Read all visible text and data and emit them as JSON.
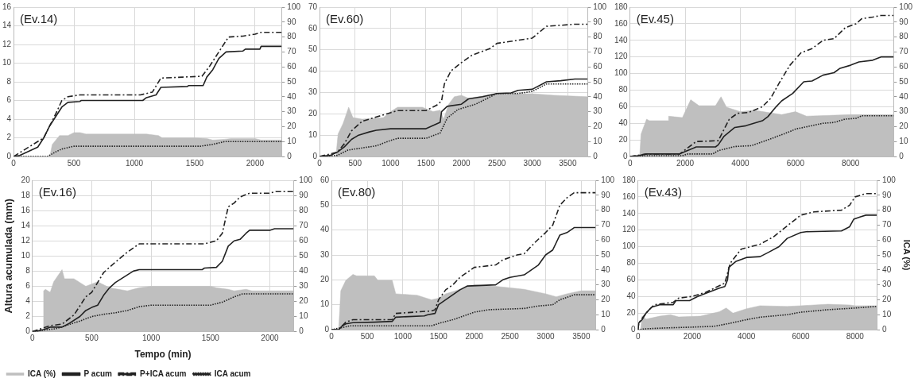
{
  "chart_data": [
    {
      "type": "line",
      "title": "(Ev.14)",
      "xlim": [
        0,
        2220
      ],
      "xticks": [
        0,
        500,
        1000,
        1500,
        2000
      ],
      "ylim": [
        0,
        16
      ],
      "yticks": [
        0,
        2,
        4,
        6,
        8,
        10,
        12,
        14,
        16
      ],
      "y2lim": [
        0,
        100
      ],
      "y2ticks": [
        0,
        10,
        20,
        30,
        40,
        50,
        60,
        70,
        80,
        90,
        100
      ],
      "grid": true,
      "legend": false,
      "series": [
        {
          "type": "area",
          "axis": "y2",
          "color": "#bfbfbf",
          "x": [
            0,
            300,
            320,
            380,
            450,
            500,
            550,
            600,
            1000,
            1100,
            1200,
            1230,
            1500,
            1600,
            1650,
            1750,
            1800,
            2000,
            2050,
            2220
          ],
          "values": [
            0,
            0,
            8,
            14,
            14,
            16,
            16,
            15,
            15,
            15,
            14,
            12.5,
            12.5,
            12,
            11,
            11.5,
            12,
            12,
            11,
            11
          ]
        },
        {
          "type": "line",
          "line_style": "solid",
          "color": "#222222",
          "x": [
            0,
            50,
            100,
            200,
            250,
            300,
            350,
            400,
            450,
            550,
            560,
            1070,
            1100,
            1180,
            1220,
            1440,
            1450,
            1570,
            1600,
            1650,
            1700,
            1760,
            1900,
            1920,
            2040,
            2050,
            2220
          ],
          "values": [
            0,
            0.1,
            0.4,
            1.0,
            2,
            3.3,
            4.3,
            5.3,
            5.8,
            5.9,
            6.0,
            6.0,
            6.3,
            6.6,
            7.4,
            7.5,
            7.6,
            7.6,
            8.5,
            9.3,
            10.5,
            11.2,
            11.3,
            11.5,
            11.5,
            11.8,
            11.8
          ]
        },
        {
          "type": "line",
          "line_style": "dashed",
          "color": "#222222",
          "x": [
            0,
            250,
            300,
            350,
            400,
            450,
            550,
            1050,
            1150,
            1220,
            1400,
            1560,
            1620,
            1700,
            1780,
            1900,
            2000,
            2050,
            2220
          ],
          "values": [
            0,
            2,
            3.3,
            4.6,
            6.0,
            6.4,
            6.6,
            6.6,
            6.9,
            8.4,
            8.5,
            8.6,
            9.6,
            11.2,
            12.8,
            12.9,
            13.1,
            13.3,
            13.3
          ]
        },
        {
          "type": "line",
          "line_style": "dotted",
          "color": "#222222",
          "x": [
            0,
            280,
            350,
            400,
            500,
            1550,
            1650,
            1750,
            2220
          ],
          "values": [
            0,
            0,
            0.5,
            0.8,
            1.1,
            1.1,
            1.3,
            1.6,
            1.6
          ]
        }
      ]
    },
    {
      "type": "line",
      "title": "(Ev.60)",
      "xlim": [
        0,
        3780
      ],
      "xticks": [
        0,
        500,
        1000,
        1500,
        2000,
        2500,
        3000,
        3500
      ],
      "ylim": [
        0,
        70
      ],
      "yticks": [
        0,
        10,
        20,
        30,
        40,
        50,
        60,
        70
      ],
      "y2lim": [
        0,
        100
      ],
      "y2ticks": [
        0,
        10,
        20,
        30,
        40,
        50,
        60,
        70,
        80,
        90,
        100
      ],
      "grid": true,
      "legend": false,
      "series": [
        {
          "type": "area",
          "axis": "y2",
          "color": "#bfbfbf",
          "x": [
            0,
            230,
            260,
            330,
            410,
            470,
            600,
            900,
            1000,
            1100,
            1450,
            1600,
            1700,
            1750,
            1820,
            1900,
            2000,
            2100,
            2500,
            2800,
            3000,
            3300,
            3780
          ],
          "values": [
            0,
            0,
            15,
            22,
            33,
            26,
            25,
            26,
            30,
            33,
            33,
            30,
            31,
            25,
            35,
            40,
            41,
            39,
            42,
            42,
            42,
            41,
            40
          ]
        },
        {
          "type": "line",
          "line_style": "solid",
          "color": "#222222",
          "x": [
            0,
            150,
            250,
            350,
            450,
            550,
            700,
            800,
            1000,
            1500,
            1600,
            1700,
            1720,
            1800,
            2000,
            2100,
            2300,
            2500,
            2700,
            2800,
            3000,
            3200,
            3400,
            3600,
            3780
          ],
          "values": [
            0,
            0.5,
            2,
            4.5,
            8,
            10,
            11.5,
            12.3,
            13,
            13,
            14.5,
            16,
            21,
            23.5,
            24.5,
            27,
            28,
            29.5,
            29.8,
            31,
            31.5,
            35,
            35.5,
            36.3,
            36.3
          ]
        },
        {
          "type": "line",
          "line_style": "dashed",
          "color": "#222222",
          "x": [
            0,
            250,
            350,
            450,
            600,
            800,
            1000,
            1100,
            1500,
            1650,
            1720,
            1760,
            1850,
            2000,
            2150,
            2400,
            2500,
            2700,
            3000,
            3200,
            3400,
            3600,
            3780
          ],
          "values": [
            0,
            2,
            6,
            12,
            16.5,
            18.5,
            20.5,
            21.5,
            21.5,
            24,
            26,
            34,
            40,
            44,
            47.5,
            50.5,
            53,
            54,
            55.5,
            61,
            61.5,
            62,
            62
          ]
        },
        {
          "type": "line",
          "line_style": "dotted",
          "color": "#222222",
          "x": [
            0,
            250,
            400,
            600,
            800,
            1000,
            1100,
            1500,
            1700,
            1800,
            1950,
            2200,
            2500,
            2800,
            3000,
            3200,
            3780
          ],
          "values": [
            0,
            0.5,
            3,
            4,
            5,
            7.5,
            8.5,
            8.5,
            11,
            18,
            22,
            24.5,
            29.5,
            29.5,
            30.5,
            34,
            34
          ]
        }
      ]
    },
    {
      "type": "line",
      "title": "(Ev.45)",
      "xlim": [
        0,
        9560
      ],
      "xticks": [
        0,
        2000,
        4000,
        6000,
        8000
      ],
      "ylim": [
        0,
        180
      ],
      "yticks": [
        0,
        20,
        40,
        60,
        80,
        100,
        120,
        140,
        160,
        180
      ],
      "y2lim": [
        0,
        100
      ],
      "y2ticks": [
        0,
        10,
        20,
        30,
        40,
        50,
        60,
        70,
        80,
        90,
        100
      ],
      "grid": true,
      "legend": false,
      "series": [
        {
          "type": "area",
          "axis": "y2",
          "color": "#bfbfbf",
          "x": [
            0,
            350,
            400,
            600,
            700,
            1400,
            1400,
            1900,
            2200,
            2500,
            3100,
            3300,
            3500,
            4000,
            4500,
            5500,
            6000,
            6400,
            8000,
            9560
          ],
          "values": [
            0,
            0,
            15,
            25,
            24,
            24,
            27,
            26,
            38,
            34,
            34,
            40,
            33,
            30,
            31,
            28,
            30,
            27,
            28,
            28
          ]
        },
        {
          "type": "line",
          "line_style": "solid",
          "color": "#222222",
          "x": [
            0,
            300,
            600,
            1000,
            1800,
            2000,
            2300,
            2400,
            3100,
            3200,
            3400,
            3800,
            4200,
            4800,
            5000,
            5300,
            5500,
            5900,
            6300,
            6600,
            7000,
            7400,
            7600,
            8000,
            8300,
            8800,
            9100,
            9560
          ],
          "values": [
            0,
            1,
            3,
            3,
            3,
            6,
            10,
            11.5,
            11.5,
            14,
            24,
            35,
            37,
            43,
            48,
            60,
            67,
            76,
            90,
            91,
            98,
            101,
            106,
            110,
            114,
            116,
            120,
            120
          ]
        },
        {
          "type": "line",
          "line_style": "dashed",
          "color": "#222222",
          "x": [
            0,
            600,
            1800,
            2000,
            2400,
            3200,
            3600,
            3900,
            4300,
            4800,
            5100,
            5400,
            5800,
            6200,
            6600,
            7000,
            7400,
            7800,
            8200,
            8400,
            8800,
            9100,
            9560
          ],
          "values": [
            0,
            3,
            3,
            8,
            18,
            19,
            45,
            52,
            53,
            60,
            70,
            88,
            110,
            125,
            130,
            140,
            142,
            155,
            160,
            166,
            168,
            170,
            170
          ]
        },
        {
          "type": "line",
          "line_style": "dotted",
          "color": "#222222",
          "x": [
            0,
            600,
            1900,
            2100,
            3000,
            3200,
            3800,
            4400,
            5000,
            5800,
            6000,
            7000,
            7400,
            7800,
            8200,
            8400,
            9560
          ],
          "values": [
            0,
            1,
            1,
            3,
            3,
            7,
            12,
            13,
            20,
            30,
            33,
            40,
            41,
            45,
            46,
            49,
            49
          ]
        }
      ]
    },
    {
      "type": "line",
      "title": "(Ev.16)",
      "xlabel": "Tempo (min)",
      "ylabel": "Altura acumulada (mm)",
      "xlim": [
        0,
        2200
      ],
      "xticks": [
        0,
        500,
        1000,
        1500,
        2000
      ],
      "ylim": [
        0,
        20
      ],
      "yticks": [
        0,
        2,
        4,
        6,
        8,
        10,
        12,
        14,
        16,
        18,
        20
      ],
      "y2lim": [
        0,
        100
      ],
      "y2ticks": [
        0,
        10,
        20,
        30,
        40,
        50,
        60,
        70,
        80,
        90,
        100
      ],
      "grid": true,
      "legend": "bottom",
      "series": [
        {
          "type": "area",
          "axis": "y2",
          "name": "ICA (%)",
          "color": "#bfbfbf",
          "x": [
            0,
            90,
            95,
            110,
            150,
            180,
            250,
            270,
            300,
            350,
            450,
            550,
            650,
            800,
            900,
            1000,
            1500,
            1550,
            1650,
            1700,
            1800,
            1850,
            2200
          ],
          "values": [
            0,
            0,
            27,
            28,
            26,
            33,
            41,
            35,
            35,
            35,
            30,
            33,
            29,
            27,
            29,
            30,
            30,
            29,
            28,
            27,
            28,
            27,
            27
          ]
        },
        {
          "type": "line",
          "line_style": "solid",
          "name": "P acum",
          "color": "#222222",
          "x": [
            0,
            50,
            100,
            150,
            250,
            300,
            400,
            450,
            500,
            550,
            600,
            650,
            700,
            800,
            850,
            900,
            1430,
            1450,
            1550,
            1600,
            1650,
            1700,
            1750,
            1800,
            1830,
            2000,
            2040,
            2200
          ],
          "values": [
            0,
            0.1,
            0.3,
            0.6,
            0.6,
            1,
            2,
            2.8,
            3.2,
            3.5,
            4.8,
            5.8,
            6.5,
            7.5,
            8,
            8.2,
            8.2,
            8.4,
            8.5,
            9.3,
            11.3,
            12,
            12.2,
            13,
            13.4,
            13.4,
            13.6,
            13.6
          ]
        },
        {
          "type": "line",
          "line_style": "dashed",
          "name": "P+ICA acum",
          "color": "#222222",
          "x": [
            0,
            150,
            250,
            350,
            400,
            450,
            500,
            600,
            700,
            800,
            900,
            1450,
            1550,
            1600,
            1650,
            1700,
            1750,
            1830,
            2000,
            2050,
            2200
          ],
          "values": [
            0,
            0.8,
            1,
            2.2,
            3.4,
            4.6,
            5.2,
            7.8,
            9.2,
            10.5,
            11.6,
            11.6,
            12,
            13,
            16.5,
            17,
            17.8,
            18.3,
            18.3,
            18.5,
            18.5
          ]
        },
        {
          "type": "line",
          "line_style": "dotted",
          "name": "ICA acum",
          "color": "#222222",
          "x": [
            0,
            100,
            200,
            300,
            400,
            500,
            600,
            700,
            800,
            900,
            1000,
            1500,
            1600,
            1700,
            1770,
            2200
          ],
          "values": [
            0,
            0.2,
            0.4,
            0.9,
            1.4,
            2,
            2.3,
            2.5,
            2.8,
            3.3,
            3.5,
            3.5,
            3.9,
            4.6,
            5,
            5
          ]
        }
      ]
    },
    {
      "type": "line",
      "title": "(Ev.80)",
      "xlim": [
        0,
        3700
      ],
      "xticks": [
        0,
        500,
        1000,
        1500,
        2000,
        2500,
        3000,
        3500
      ],
      "ylim": [
        0,
        60
      ],
      "yticks": [
        0,
        10,
        20,
        30,
        40,
        50,
        60
      ],
      "y2lim": [
        0,
        100
      ],
      "y2ticks": [
        0,
        10,
        20,
        30,
        40,
        50,
        60,
        70,
        80,
        90,
        100
      ],
      "grid": true,
      "legend": false,
      "series": [
        {
          "type": "area",
          "axis": "y2",
          "color": "#bfbfbf",
          "x": [
            0,
            100,
            130,
            200,
            300,
            350,
            600,
            650,
            850,
            900,
            1200,
            1400,
            1500,
            1600,
            1800,
            2000,
            2300,
            2700,
            3000,
            3150,
            3300,
            3500,
            3700
          ],
          "values": [
            0,
            0,
            26,
            33,
            37,
            36,
            36,
            33,
            33,
            24,
            23,
            20,
            21,
            24,
            27,
            30,
            29,
            27,
            24,
            22,
            24,
            26,
            26
          ]
        },
        {
          "type": "line",
          "line_style": "solid",
          "color": "#222222",
          "x": [
            0,
            100,
            150,
            200,
            300,
            600,
            850,
            900,
            1300,
            1350,
            1450,
            1500,
            1600,
            1700,
            1800,
            1900,
            2300,
            2400,
            2500,
            2700,
            2900,
            3000,
            3100,
            3200,
            3300,
            3400,
            3700
          ],
          "values": [
            0,
            0,
            1.5,
            2.3,
            2.8,
            3,
            3.3,
            5,
            5.5,
            6,
            6.5,
            10,
            12,
            14,
            16,
            17.5,
            18,
            20,
            21,
            22,
            26,
            30,
            32,
            38,
            39,
            41,
            41
          ]
        },
        {
          "type": "line",
          "line_style": "dashed",
          "color": "#222222",
          "x": [
            0,
            100,
            200,
            300,
            850,
            900,
            1400,
            1450,
            1500,
            1600,
            1700,
            1800,
            2000,
            2300,
            2400,
            2600,
            2700,
            2850,
            3000,
            3100,
            3200,
            3300,
            3400,
            3700
          ],
          "values": [
            0,
            0,
            3,
            4,
            4,
            6.5,
            7.5,
            8,
            12,
            16,
            18,
            21,
            25,
            26,
            28,
            30,
            30.5,
            35,
            39,
            42,
            50,
            53,
            55,
            55
          ]
        },
        {
          "type": "line",
          "line_style": "dotted",
          "color": "#222222",
          "x": [
            0,
            150,
            250,
            1400,
            1500,
            1700,
            2000,
            2200,
            2700,
            2900,
            3100,
            3200,
            3400,
            3700
          ],
          "values": [
            0,
            0.8,
            1.5,
            1.5,
            2.5,
            4,
            7,
            8,
            8.5,
            9.5,
            10,
            12,
            14,
            14
          ]
        }
      ]
    },
    {
      "type": "line",
      "title": "(Ev.43)",
      "y2label": "ICA (%)",
      "xlim": [
        0,
        8800
      ],
      "xticks": [
        0,
        2000,
        4000,
        6000,
        8000
      ],
      "ylim": [
        0,
        180
      ],
      "yticks": [
        0,
        20,
        40,
        60,
        80,
        100,
        120,
        140,
        160,
        180
      ],
      "y2lim": [
        0,
        100
      ],
      "y2ticks": [
        0,
        10,
        20,
        30,
        40,
        50,
        60,
        70,
        80,
        90,
        100
      ],
      "grid": true,
      "legend": false,
      "series": [
        {
          "type": "area",
          "axis": "y2",
          "color": "#bfbfbf",
          "x": [
            0,
            100,
            150,
            300,
            800,
            1200,
            1500,
            2300,
            3000,
            3250,
            3500,
            4000,
            4500,
            5500,
            6000,
            7000,
            7800,
            8000,
            8800
          ],
          "values": [
            0,
            0,
            9,
            7,
            9,
            10,
            8.5,
            9,
            12,
            14.5,
            11,
            14,
            16,
            15.5,
            16,
            17,
            16.5,
            16,
            16
          ]
        },
        {
          "type": "line",
          "line_style": "solid",
          "color": "#222222",
          "x": [
            0,
            30,
            150,
            300,
            500,
            800,
            1300,
            1400,
            1900,
            2200,
            2600,
            3000,
            3200,
            3300,
            3350,
            3600,
            4000,
            4500,
            4800,
            5200,
            5500,
            6000,
            6200,
            7500,
            7800,
            7950,
            8200,
            8400,
            8800
          ],
          "values": [
            0,
            8,
            12,
            20,
            27,
            30,
            30,
            35,
            35,
            40,
            45,
            50,
            52,
            60,
            75,
            82,
            87,
            88,
            93,
            100,
            110,
            117,
            118,
            119,
            124,
            133,
            136,
            138,
            138
          ]
        },
        {
          "type": "line",
          "line_style": "dashed",
          "color": "#222222",
          "x": [
            0,
            30,
            300,
            600,
            1300,
            1500,
            2000,
            2500,
            3200,
            3400,
            3800,
            4500,
            5000,
            5500,
            6000,
            6500,
            7500,
            7800,
            8000,
            8400,
            8800
          ],
          "values": [
            0,
            8,
            20,
            30,
            33,
            38,
            40,
            45,
            56,
            80,
            97,
            103,
            112,
            125,
            138,
            142,
            144,
            150,
            160,
            164,
            164
          ]
        },
        {
          "type": "line",
          "line_style": "dotted",
          "color": "#222222",
          "x": [
            0,
            300,
            1000,
            2000,
            2800,
            3300,
            4000,
            4500,
            5500,
            6000,
            7000,
            8000,
            8800
          ],
          "values": [
            0,
            1,
            2,
            3,
            4,
            7,
            12,
            15,
            18,
            21,
            24,
            26,
            28
          ]
        }
      ]
    }
  ]
}
